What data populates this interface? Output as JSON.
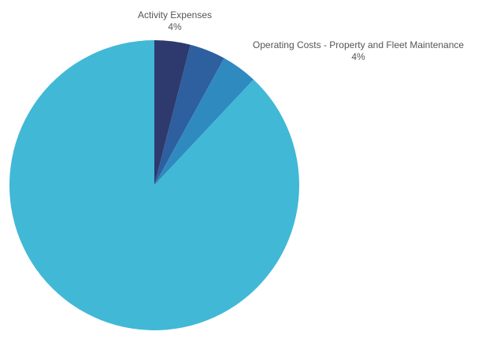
{
  "chart_data": {
    "type": "pie",
    "title": "",
    "start_angle_deg": 0,
    "direction": "clockwise",
    "slices": [
      {
        "name": "Activity Expenses",
        "value": 4,
        "value_label": "4%",
        "color": "#2e3a6e",
        "show_label": true
      },
      {
        "name": "",
        "value": 4,
        "value_label": "",
        "color": "#2e5f9e",
        "show_label": false
      },
      {
        "name": "Operating Costs - Property and Fleet Maintenance",
        "value": 4,
        "value_label": "4%",
        "color": "#2f8ac0",
        "show_label": true
      },
      {
        "name": "",
        "value": 88,
        "value_label": "",
        "color": "#41b8d6",
        "show_label": false
      }
    ]
  }
}
